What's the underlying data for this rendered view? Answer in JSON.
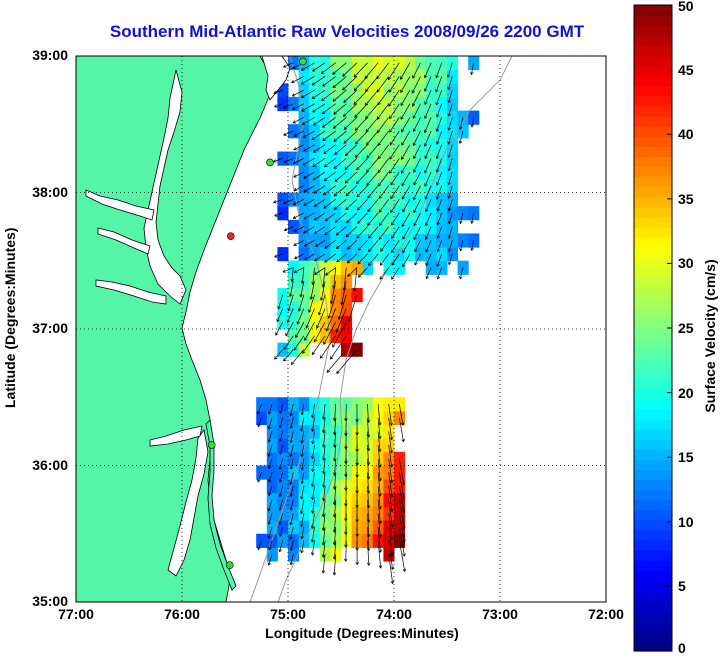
{
  "title": "Southern Mid-Atlantic Raw Velocities 2008/09/26 2200 GMT",
  "map": {
    "xlabel": "Longitude (Degrees:Minutes)",
    "ylabel": "Latitude (Degrees:Minutes)",
    "lon_range": [
      -77,
      -72
    ],
    "lat_range": [
      35,
      39
    ],
    "xticks": [
      {
        "value": -77,
        "label": "77:00"
      },
      {
        "value": -76,
        "label": "76:00"
      },
      {
        "value": -75,
        "label": "75:00"
      },
      {
        "value": -74,
        "label": "74:00"
      },
      {
        "value": -73,
        "label": "73:00"
      },
      {
        "value": -72,
        "label": "72:00"
      }
    ],
    "yticks": [
      {
        "value": 39,
        "label": "39:00"
      },
      {
        "value": 38,
        "label": "38:00"
      },
      {
        "value": 37,
        "label": "37:00"
      },
      {
        "value": 36,
        "label": "36:00"
      },
      {
        "value": 35,
        "label": "35:00"
      }
    ],
    "grid": "dotted",
    "land_color": "#55f5a8",
    "stations": [
      {
        "lon": -74.86,
        "lat": 38.96,
        "color": "#33dd33"
      },
      {
        "lon": -75.17,
        "lat": 38.22,
        "color": "#33dd33"
      },
      {
        "lon": -75.54,
        "lat": 37.68,
        "color": "#ee2222"
      },
      {
        "lon": -75.72,
        "lat": 36.15,
        "color": "#33dd33"
      },
      {
        "lon": -75.55,
        "lat": 35.27,
        "color": "#33dd33"
      }
    ]
  },
  "colorbar": {
    "label": "Surface Velocity (cm/s)",
    "range": [
      0,
      50
    ],
    "colormap": "jet",
    "ticks": [
      {
        "value": 50,
        "label": "50"
      },
      {
        "value": 45,
        "label": "45"
      },
      {
        "value": 40,
        "label": "40"
      },
      {
        "value": 35,
        "label": "35"
      },
      {
        "value": 30,
        "label": "30"
      },
      {
        "value": 25,
        "label": "25"
      },
      {
        "value": 20,
        "label": "20"
      },
      {
        "value": 15,
        "label": "15"
      },
      {
        "value": 10,
        "label": "10"
      },
      {
        "value": 5,
        "label": "5"
      },
      {
        "value": 0,
        "label": "0"
      }
    ]
  },
  "chart_data": {
    "type": "heatmap",
    "title": "Southern Mid-Atlantic Raw Velocities 2008/09/26 2200 GMT",
    "xlabel": "Longitude (Degrees:Minutes)",
    "ylabel": "Latitude (Degrees:Minutes)",
    "xlim": [
      -77,
      -72
    ],
    "ylim": [
      35,
      39
    ],
    "value_label": "Surface Velocity (cm/s)",
    "value_range": [
      0,
      50
    ],
    "regions": [
      {
        "name_hint": "north",
        "lon_range": [
          -75.1,
          -73.3
        ],
        "lat_range": [
          37.4,
          39.0
        ],
        "speed_range": [
          5,
          30
        ]
      },
      {
        "name_hint": "mid",
        "lon_range": [
          -75.1,
          -74.4
        ],
        "lat_range": [
          36.8,
          37.5
        ],
        "speed_range": [
          10,
          50
        ]
      },
      {
        "name_hint": "south",
        "lon_range": [
          -75.3,
          -74.0
        ],
        "lat_range": [
          35.3,
          36.5
        ],
        "speed_range": [
          10,
          50
        ]
      }
    ],
    "vector_direction": "mostly southward / south-westward"
  }
}
